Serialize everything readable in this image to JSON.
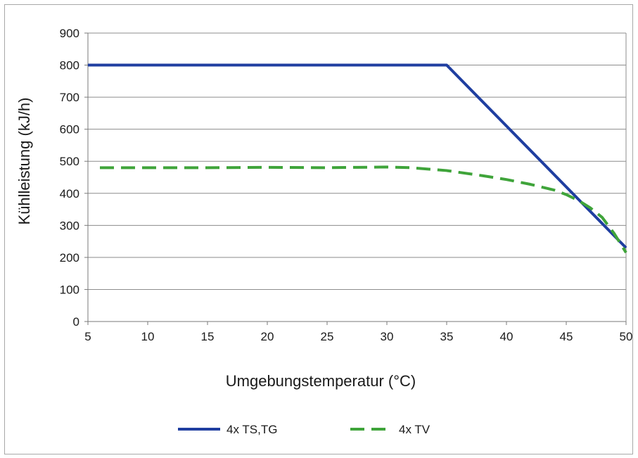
{
  "chart_data": {
    "type": "line",
    "title": "",
    "xlabel": "Umgebungstemperatur (°C)",
    "ylabel": "Kühlleistung (kJ/h)",
    "xlim": [
      5,
      50
    ],
    "ylim": [
      0,
      900
    ],
    "xticks": [
      5,
      10,
      15,
      20,
      25,
      30,
      35,
      40,
      45,
      50
    ],
    "yticks": [
      0,
      100,
      200,
      300,
      400,
      500,
      600,
      700,
      800,
      900
    ],
    "grid": "horizontal",
    "legend_position": "bottom",
    "series": [
      {
        "name": "4x TS,TG",
        "color": "#1f3ea0",
        "style": "solid",
        "x": [
          5,
          35,
          50
        ],
        "y": [
          800,
          800,
          230
        ]
      },
      {
        "name": "4x TV",
        "color": "#3fa43a",
        "style": "dashed",
        "x": [
          6,
          10,
          15,
          20,
          25,
          30,
          32,
          35,
          38,
          40,
          42,
          44,
          45,
          46,
          47,
          48,
          49,
          50
        ],
        "y": [
          480,
          480,
          480,
          481,
          480,
          482,
          480,
          471,
          455,
          443,
          428,
          410,
          396,
          378,
          355,
          325,
          275,
          215
        ]
      }
    ]
  }
}
